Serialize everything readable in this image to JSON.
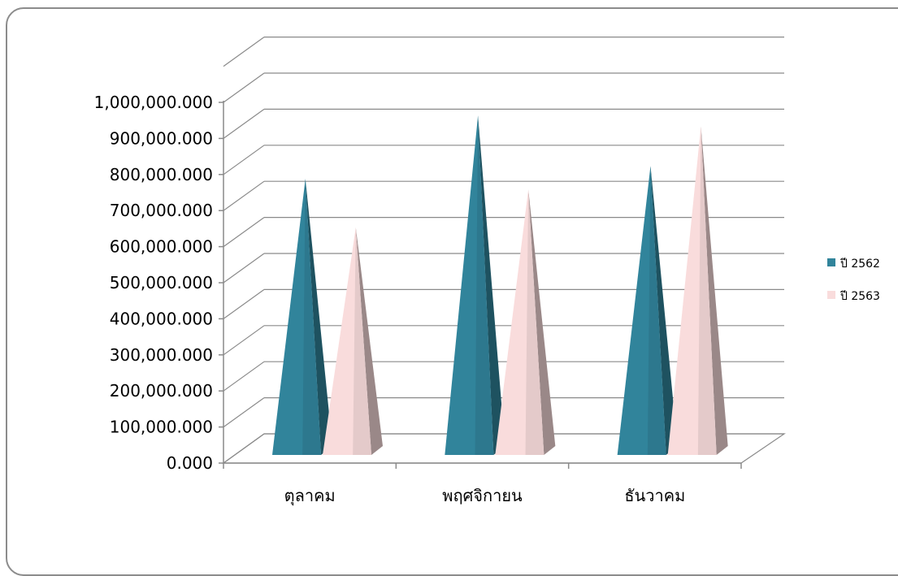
{
  "chart_data": {
    "type": "bar",
    "style": "3d-pyramid",
    "categories": [
      "ตุลาคม",
      "พฤศจิกายน",
      "ธันวาคม"
    ],
    "series": [
      {
        "name": "ปี 2562",
        "values": [
          760000000,
          935000000,
          795000000
        ],
        "color": "#31849b"
      },
      {
        "name": "ปี 2563",
        "values": [
          625000000,
          730000000,
          905000000
        ],
        "color": "#f9dcdc"
      }
    ],
    "yticks": [
      "0.000",
      "100,000.000",
      "200,000.000",
      "300,000.000",
      "400,000.000",
      "500,000.000",
      "600,000.000",
      "700,000.000",
      "800,000.000",
      "900,000.000",
      "1,000,000.000"
    ],
    "ylim": [
      0,
      1000000000
    ],
    "grid": true,
    "legend": "right"
  }
}
